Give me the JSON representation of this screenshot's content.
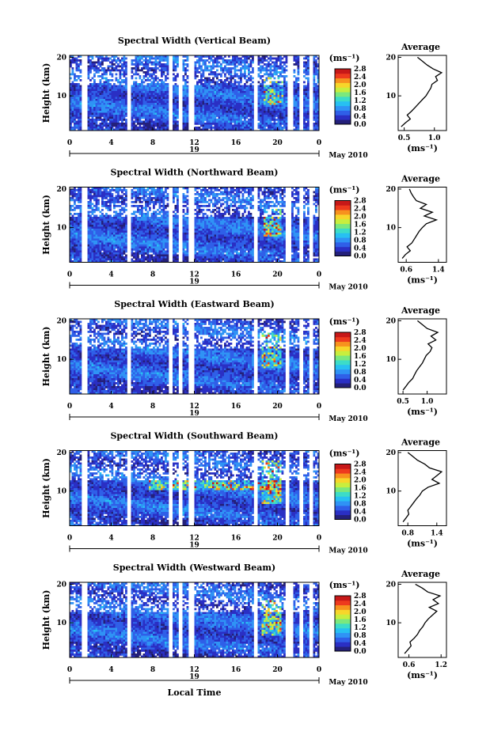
{
  "figure": {
    "xlabel": "Local Time",
    "date_label": "May 2010",
    "day_label": "19",
    "colorbar_unit": "(ms⁻¹)",
    "profile_title": "Average",
    "profile_xlabel": "(ms⁻¹)",
    "height_label": "Height (km)"
  },
  "colormap": [
    "#24207a",
    "#2a2fc4",
    "#2f5fe8",
    "#2f93f5",
    "#27c0f2",
    "#3cdcc8",
    "#7be87d",
    "#c8ee3e",
    "#f7d62a",
    "#f7921e",
    "#ee3a1e",
    "#c71818"
  ],
  "chart_data": [
    {
      "type": "heatmap",
      "title": "Spectral Width (Vertical Beam)",
      "ylabel": "Height (km)",
      "xlabel": "",
      "x_ticks": [
        "0",
        "4",
        "8",
        "12",
        "16",
        "20",
        "0"
      ],
      "y_ticks": [
        "20",
        "10"
      ],
      "xlim": [
        0,
        24
      ],
      "ylim": [
        1,
        20.5
      ],
      "colorbar": {
        "unit": "(ms⁻¹)",
        "ticks": [
          "2.8",
          "2.4",
          "2.0",
          "1.6",
          "1.2",
          "0.8",
          "0.4",
          "0.0"
        ],
        "range": [
          0,
          2.8
        ]
      },
      "gaps_hours": [
        [
          1.1,
          1.7
        ],
        [
          5.4,
          5.8
        ],
        [
          9.4,
          9.8
        ],
        [
          10.4,
          10.8
        ],
        [
          11.4,
          11.9
        ],
        [
          17.6,
          18.0
        ],
        [
          20.9,
          21.5
        ],
        [
          22.0,
          22.3
        ],
        [
          23.0,
          23.3
        ]
      ],
      "enhancements": [
        {
          "t0": 18.6,
          "t1": 20.5,
          "h0": 8,
          "h1": 15,
          "peak_ms": 2.8
        }
      ],
      "profile": {
        "title": "Average",
        "xlabel": "(ms⁻¹)",
        "x_ticks": [
          "0.5",
          "1.0"
        ],
        "xlim": [
          0.4,
          1.2
        ],
        "y_ticks": [
          "20",
          "10"
        ],
        "heights_km": [
          2,
          3,
          4,
          5,
          6,
          7,
          8,
          9,
          10,
          11,
          12,
          13,
          14,
          15,
          16,
          17,
          18,
          19,
          20
        ],
        "values": [
          0.45,
          0.52,
          0.6,
          0.55,
          0.62,
          0.68,
          0.74,
          0.8,
          0.86,
          0.9,
          0.94,
          0.96,
          1.05,
          1.02,
          1.12,
          0.98,
          0.88,
          0.8,
          0.72
        ]
      }
    },
    {
      "type": "heatmap",
      "title": "Spectral Width (Northward Beam)",
      "ylabel": "Height (km)",
      "xlabel": "",
      "x_ticks": [
        "0",
        "4",
        "8",
        "12",
        "16",
        "20",
        "0"
      ],
      "y_ticks": [
        "20",
        "10"
      ],
      "xlim": [
        0,
        24
      ],
      "ylim": [
        1,
        20.5
      ],
      "colorbar": {
        "unit": "(ms⁻¹)",
        "ticks": [
          "2.8",
          "2.4",
          "2.0",
          "1.6",
          "1.2",
          "0.8",
          "0.4",
          "0.0"
        ],
        "range": [
          0,
          2.8
        ]
      },
      "gaps_hours": [
        [
          1.1,
          1.7
        ],
        [
          5.4,
          5.8
        ],
        [
          9.4,
          9.8
        ],
        [
          10.4,
          10.8
        ],
        [
          11.4,
          11.9
        ],
        [
          17.6,
          18.0
        ],
        [
          20.6,
          21.3
        ],
        [
          22.0,
          22.3
        ],
        [
          23.0,
          23.3
        ]
      ],
      "enhancements": [
        {
          "t0": 18.6,
          "t1": 20.3,
          "h0": 8,
          "h1": 15,
          "peak_ms": 2.8
        }
      ],
      "profile": {
        "title": "Average",
        "xlabel": "(ms⁻¹)",
        "x_ticks": [
          "0.6",
          "1.4"
        ],
        "xlim": [
          0.4,
          1.6
        ],
        "y_ticks": [
          "20",
          "10"
        ],
        "heights_km": [
          2,
          3,
          4,
          5,
          6,
          7,
          8,
          9,
          10,
          11,
          12,
          13,
          14,
          15,
          16,
          17,
          18,
          19,
          20
        ],
        "values": [
          0.5,
          0.58,
          0.7,
          0.62,
          0.74,
          0.8,
          0.86,
          0.92,
          1.0,
          1.1,
          1.35,
          1.05,
          1.25,
          0.95,
          1.1,
          0.85,
          0.78,
          0.72,
          0.68
        ]
      }
    },
    {
      "type": "heatmap",
      "title": "Spectral Width (Eastward Beam)",
      "ylabel": "Height (km)",
      "xlabel": "",
      "x_ticks": [
        "0",
        "4",
        "8",
        "12",
        "16",
        "20",
        "0"
      ],
      "y_ticks": [
        "20",
        "10"
      ],
      "xlim": [
        0,
        24
      ],
      "ylim": [
        1,
        20.5
      ],
      "colorbar": {
        "unit": "(ms⁻¹)",
        "ticks": [
          "2.8",
          "2.4",
          "2.0",
          "1.6",
          "1.2",
          "0.8",
          "0.4",
          "0.0"
        ],
        "range": [
          0,
          2.8
        ]
      },
      "gaps_hours": [
        [
          1.1,
          1.7
        ],
        [
          5.4,
          5.8
        ],
        [
          9.4,
          9.8
        ],
        [
          10.4,
          10.8
        ],
        [
          11.4,
          11.9
        ],
        [
          17.6,
          18.0
        ],
        [
          20.6,
          21.0
        ],
        [
          22.0,
          22.3
        ],
        [
          23.0,
          23.3
        ]
      ],
      "enhancements": [
        {
          "t0": 18.4,
          "t1": 20.3,
          "h0": 8,
          "h1": 17,
          "peak_ms": 2.6
        }
      ],
      "profile": {
        "title": "Average",
        "xlabel": "(ms⁻¹)",
        "x_ticks": [
          "0.5",
          "1.0"
        ],
        "xlim": [
          0.4,
          1.4
        ],
        "y_ticks": [
          "20",
          "10"
        ],
        "heights_km": [
          2,
          3,
          4,
          5,
          6,
          7,
          8,
          9,
          10,
          11,
          12,
          13,
          14,
          15,
          16,
          17,
          18,
          19,
          20
        ],
        "values": [
          0.5,
          0.56,
          0.62,
          0.7,
          0.74,
          0.78,
          0.84,
          0.9,
          0.94,
          0.98,
          1.06,
          1.1,
          1.02,
          1.18,
          1.08,
          1.22,
          1.0,
          0.9,
          0.8
        ]
      }
    },
    {
      "type": "heatmap",
      "title": "Spectral Width (Southward Beam)",
      "ylabel": "Height (km)",
      "xlabel": "",
      "x_ticks": [
        "0",
        "4",
        "8",
        "12",
        "16",
        "20",
        "0"
      ],
      "y_ticks": [
        "20",
        "10"
      ],
      "xlim": [
        0,
        24
      ],
      "ylim": [
        1,
        20.5
      ],
      "colorbar": {
        "unit": "(ms⁻¹)",
        "ticks": [
          "2.8",
          "2.4",
          "2.0",
          "1.6",
          "1.2",
          "0.8",
          "0.4",
          "0.0"
        ],
        "range": [
          0,
          2.8
        ]
      },
      "gaps_hours": [
        [
          1.1,
          1.7
        ],
        [
          5.4,
          5.8
        ],
        [
          9.4,
          9.8
        ],
        [
          10.4,
          10.8
        ],
        [
          11.4,
          11.9
        ],
        [
          17.6,
          18.0
        ],
        [
          20.6,
          21.0
        ],
        [
          22.0,
          22.3
        ],
        [
          23.0,
          23.3
        ]
      ],
      "enhancements": [
        {
          "t0": 7.5,
          "t1": 20.3,
          "h0": 10.5,
          "h1": 13,
          "peak_ms": 2.8
        },
        {
          "t0": 18.3,
          "t1": 20.3,
          "h0": 7,
          "h1": 18,
          "peak_ms": 2.6
        }
      ],
      "profile": {
        "title": "Average",
        "xlabel": "(ms⁻¹)",
        "x_ticks": [
          "0.8",
          "1.4"
        ],
        "xlim": [
          0.6,
          1.6
        ],
        "y_ticks": [
          "20",
          "10"
        ],
        "heights_km": [
          2,
          3,
          4,
          5,
          6,
          7,
          8,
          9,
          10,
          11,
          12,
          13,
          14,
          15,
          16,
          17,
          18,
          19,
          20
        ],
        "values": [
          0.7,
          0.76,
          0.82,
          0.8,
          0.86,
          0.92,
          0.98,
          1.05,
          1.1,
          1.22,
          1.45,
          1.3,
          1.4,
          1.5,
          1.25,
          1.15,
          1.0,
          0.9,
          0.8
        ]
      }
    },
    {
      "type": "heatmap",
      "title": "Spectral Width (Westward Beam)",
      "ylabel": "Height (km)",
      "xlabel": "Local Time",
      "x_ticks": [
        "0",
        "4",
        "8",
        "12",
        "16",
        "20",
        "0"
      ],
      "y_ticks": [
        "20",
        "10"
      ],
      "xlim": [
        0,
        24
      ],
      "ylim": [
        1,
        20.5
      ],
      "colorbar": {
        "unit": "(ms⁻¹)",
        "ticks": [
          "2.8",
          "2.4",
          "2.0",
          "1.6",
          "1.2",
          "0.8",
          "0.4",
          "0.0"
        ],
        "range": [
          0,
          2.8
        ]
      },
      "gaps_hours": [
        [
          1.1,
          1.7
        ],
        [
          5.4,
          5.8
        ],
        [
          9.4,
          9.8
        ],
        [
          10.4,
          10.8
        ],
        [
          11.4,
          11.9
        ],
        [
          17.6,
          18.0
        ],
        [
          20.7,
          21.4
        ],
        [
          22.0,
          22.3
        ],
        [
          23.0,
          23.3
        ]
      ],
      "enhancements": [
        {
          "t0": 18.4,
          "t1": 20.3,
          "h0": 7,
          "h1": 16,
          "peak_ms": 2.8
        }
      ],
      "profile": {
        "title": "Average",
        "xlabel": "(ms⁻¹)",
        "x_ticks": [
          "0.6",
          "1.2"
        ],
        "xlim": [
          0.4,
          1.3
        ],
        "y_ticks": [
          "20",
          "10"
        ],
        "heights_km": [
          2,
          3,
          4,
          5,
          6,
          7,
          8,
          9,
          10,
          11,
          12,
          13,
          14,
          15,
          16,
          17,
          18,
          19,
          20
        ],
        "values": [
          0.52,
          0.58,
          0.64,
          0.62,
          0.7,
          0.76,
          0.8,
          0.86,
          0.9,
          0.96,
          1.04,
          1.12,
          0.98,
          1.15,
          1.05,
          1.18,
          0.95,
          0.85,
          0.72
        ]
      }
    }
  ]
}
